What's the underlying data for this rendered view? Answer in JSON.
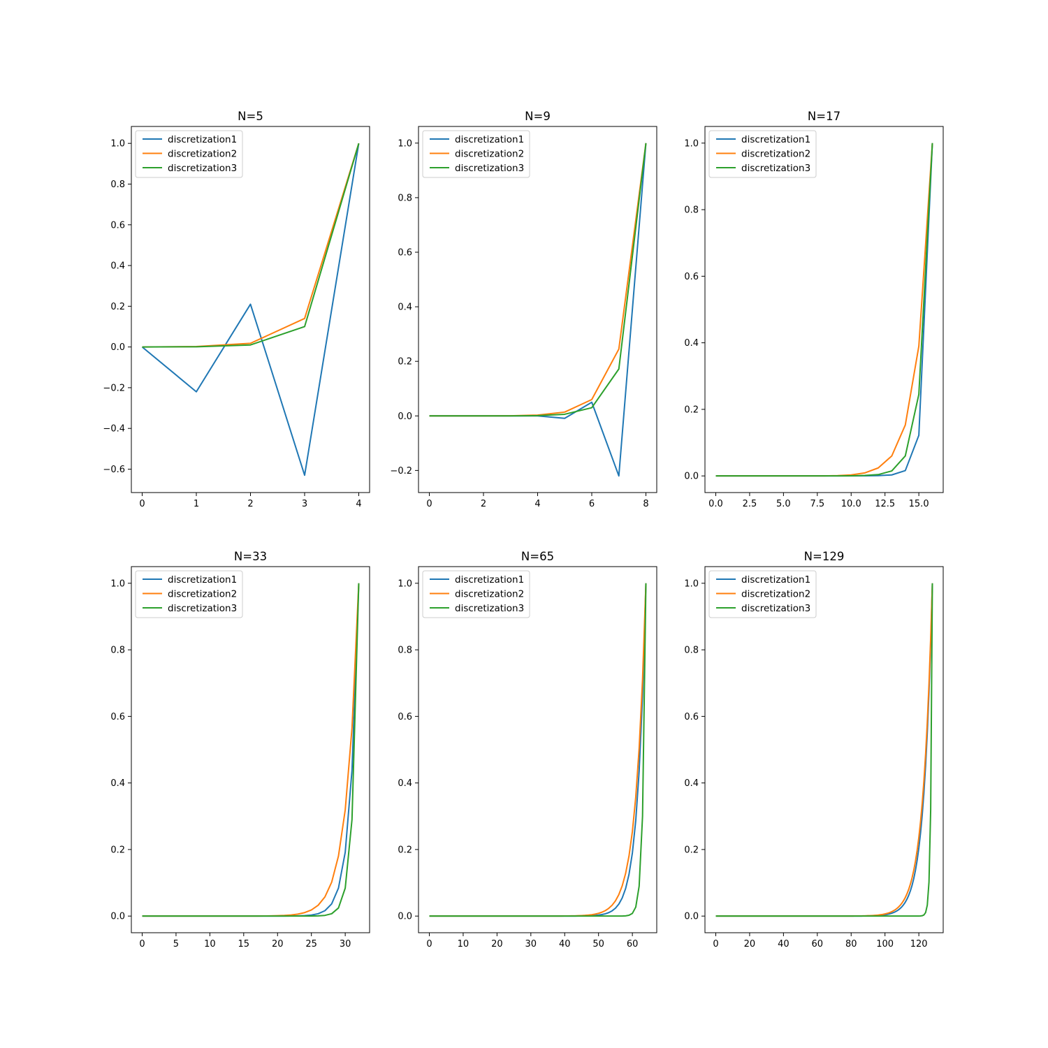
{
  "colors": {
    "discretization1": "#1f77b4",
    "discretization2": "#ff7f0e",
    "discretization3": "#2ca02c",
    "axes": "#000000",
    "legend_border": "#cccccc"
  },
  "chart_data": [
    {
      "type": "line",
      "title": "N=5",
      "xlim": [
        -0.2,
        4.2
      ],
      "ylim": [
        -0.715,
        1.083
      ],
      "xticks": [
        0,
        1,
        2,
        3,
        4
      ],
      "xtick_labels": [
        "0",
        "1",
        "2",
        "3",
        "4"
      ],
      "yticks": [
        -0.6,
        -0.4,
        -0.2,
        0.0,
        0.2,
        0.4,
        0.6,
        0.8,
        1.0
      ],
      "ytick_labels": [
        "−0.6",
        "−0.4",
        "−0.2",
        "0.0",
        "0.2",
        "0.4",
        "0.6",
        "0.8",
        "1.0"
      ],
      "legend_position": "upper-left",
      "grid": false,
      "x": [
        0,
        1,
        2,
        3,
        4
      ],
      "series": [
        {
          "name": "discretization1",
          "color": "discretization1",
          "values": [
            0.0,
            -0.22,
            0.21,
            -0.63,
            1.0
          ]
        },
        {
          "name": "discretization2",
          "color": "discretization2",
          "values": [
            0.0,
            0.002,
            0.018,
            0.14,
            1.0
          ]
        },
        {
          "name": "discretization3",
          "color": "discretization3",
          "values": [
            0.0,
            0.001,
            0.01,
            0.1,
            1.0
          ]
        }
      ]
    },
    {
      "type": "line",
      "title": "N=9",
      "xlim": [
        -0.4,
        8.4
      ],
      "ylim": [
        -0.281,
        1.061
      ],
      "xticks": [
        0,
        2,
        4,
        6,
        8
      ],
      "xtick_labels": [
        "0",
        "2",
        "4",
        "6",
        "8"
      ],
      "yticks": [
        -0.2,
        0.0,
        0.2,
        0.4,
        0.6,
        0.8,
        1.0
      ],
      "ytick_labels": [
        "−0.2",
        "0.0",
        "0.2",
        "0.4",
        "0.6",
        "0.8",
        "1.0"
      ],
      "legend_position": "upper-left",
      "grid": false,
      "x": [
        0,
        1,
        2,
        3,
        4,
        5,
        6,
        7,
        8
      ],
      "series": [
        {
          "name": "discretization1",
          "color": "discretization1",
          "values": [
            0.0,
            0.0,
            0.0,
            0.0,
            0.0,
            -0.009,
            0.05,
            -0.22,
            1.0
          ]
        },
        {
          "name": "discretization2",
          "color": "discretization2",
          "values": [
            0.0,
            0.0,
            0.0,
            0.0005,
            0.003,
            0.014,
            0.06,
            0.245,
            1.0
          ]
        },
        {
          "name": "discretization3",
          "color": "discretization3",
          "values": [
            0.0,
            0.0,
            0.0,
            0.0002,
            0.001,
            0.006,
            0.03,
            0.172,
            1.0
          ]
        }
      ]
    },
    {
      "type": "line",
      "title": "N=17",
      "xlim": [
        -0.8,
        16.8
      ],
      "ylim": [
        -0.05,
        1.05
      ],
      "xticks": [
        0,
        2.5,
        5,
        7.5,
        10,
        12.5,
        15
      ],
      "xtick_labels": [
        "0.0",
        "2.5",
        "5.0",
        "7.5",
        "10.0",
        "12.5",
        "15.0"
      ],
      "yticks": [
        0.0,
        0.2,
        0.4,
        0.6,
        0.8,
        1.0
      ],
      "ytick_labels": [
        "0.0",
        "0.2",
        "0.4",
        "0.6",
        "0.8",
        "1.0"
      ],
      "legend_position": "upper-left",
      "grid": false,
      "x": [
        0,
        1,
        2,
        3,
        4,
        5,
        6,
        7,
        8,
        9,
        10,
        11,
        12,
        13,
        14,
        15,
        16
      ],
      "series": [
        {
          "name": "discretization1",
          "color": "discretization1",
          "values": [
            0,
            0,
            0,
            0,
            0,
            0,
            0,
            0,
            0,
            0,
            0,
            0.0003,
            0.001,
            0.003,
            0.016,
            0.122,
            1.0
          ]
        },
        {
          "name": "discretization2",
          "color": "discretization2",
          "values": [
            0,
            0,
            0,
            0,
            0,
            0,
            0,
            0,
            0.0002,
            0.0008,
            0.003,
            0.009,
            0.024,
            0.06,
            0.153,
            0.39,
            1.0
          ]
        },
        {
          "name": "discretization3",
          "color": "discretization3",
          "values": [
            0,
            0,
            0,
            0,
            0,
            0,
            0,
            0,
            0,
            0.0001,
            0.0004,
            0.0015,
            0.004,
            0.015,
            0.06,
            0.245,
            1.0
          ]
        }
      ]
    },
    {
      "type": "line",
      "title": "N=33",
      "xlim": [
        -1.6,
        33.6
      ],
      "ylim": [
        -0.05,
        1.05
      ],
      "xticks": [
        0,
        5,
        10,
        15,
        20,
        25,
        30
      ],
      "xtick_labels": [
        "0",
        "5",
        "10",
        "15",
        "20",
        "25",
        "30"
      ],
      "yticks": [
        0.0,
        0.2,
        0.4,
        0.6,
        0.8,
        1.0
      ],
      "ytick_labels": [
        "0.0",
        "0.2",
        "0.4",
        "0.6",
        "0.8",
        "1.0"
      ],
      "legend_position": "upper-left",
      "grid": false,
      "x_count": 33,
      "series": [
        {
          "name": "discretization1",
          "color": "discretization1",
          "gen": {
            "kind": "pow",
            "k": 0.438,
            "last": 1.0
          }
        },
        {
          "name": "discretization2",
          "color": "discretization2",
          "gen": {
            "kind": "pow",
            "k": 0.565,
            "last": 1.0
          }
        },
        {
          "name": "discretization3",
          "color": "discretization3",
          "gen": {
            "kind": "pow",
            "k": 0.29,
            "last": 1.0
          }
        }
      ]
    },
    {
      "type": "line",
      "title": "N=65",
      "xlim": [
        -3.2,
        67.2
      ],
      "ylim": [
        -0.05,
        1.05
      ],
      "xticks": [
        0,
        10,
        20,
        30,
        40,
        50,
        60
      ],
      "xtick_labels": [
        "0",
        "10",
        "20",
        "30",
        "40",
        "50",
        "60"
      ],
      "yticks": [
        0.0,
        0.2,
        0.4,
        0.6,
        0.8,
        1.0
      ],
      "ytick_labels": [
        "0.0",
        "0.2",
        "0.4",
        "0.6",
        "0.8",
        "1.0"
      ],
      "legend_position": "upper-left",
      "grid": false,
      "x_count": 65,
      "series": [
        {
          "name": "discretization1",
          "color": "discretization1",
          "gen": {
            "kind": "pow",
            "k": 0.66,
            "last": 1.0
          }
        },
        {
          "name": "discretization2",
          "color": "discretization2",
          "gen": {
            "kind": "pow",
            "k": 0.71,
            "last": 1.0
          }
        },
        {
          "name": "discretization3",
          "color": "discretization3",
          "gen": {
            "kind": "pow",
            "k": 0.3,
            "last": 1.0
          }
        }
      ]
    },
    {
      "type": "line",
      "title": "N=129",
      "xlim": [
        -6.4,
        134.4
      ],
      "ylim": [
        -0.05,
        1.05
      ],
      "xticks": [
        0,
        20,
        40,
        60,
        80,
        100,
        120
      ],
      "xtick_labels": [
        "0",
        "20",
        "40",
        "60",
        "80",
        "100",
        "120"
      ],
      "yticks": [
        0.0,
        0.2,
        0.4,
        0.6,
        0.8,
        1.0
      ],
      "ytick_labels": [
        "0.0",
        "0.2",
        "0.4",
        "0.6",
        "0.8",
        "1.0"
      ],
      "legend_position": "upper-left",
      "grid": false,
      "x_count": 129,
      "series": [
        {
          "name": "discretization1",
          "color": "discretization1",
          "gen": {
            "kind": "pow",
            "k": 0.82,
            "last": 1.0
          }
        },
        {
          "name": "discretization2",
          "color": "discretization2",
          "gen": {
            "kind": "pow",
            "k": 0.835,
            "last": 1.0
          }
        },
        {
          "name": "discretization3",
          "color": "discretization3",
          "gen": {
            "kind": "pow",
            "k": 0.32,
            "last": 1.0
          }
        }
      ]
    }
  ]
}
